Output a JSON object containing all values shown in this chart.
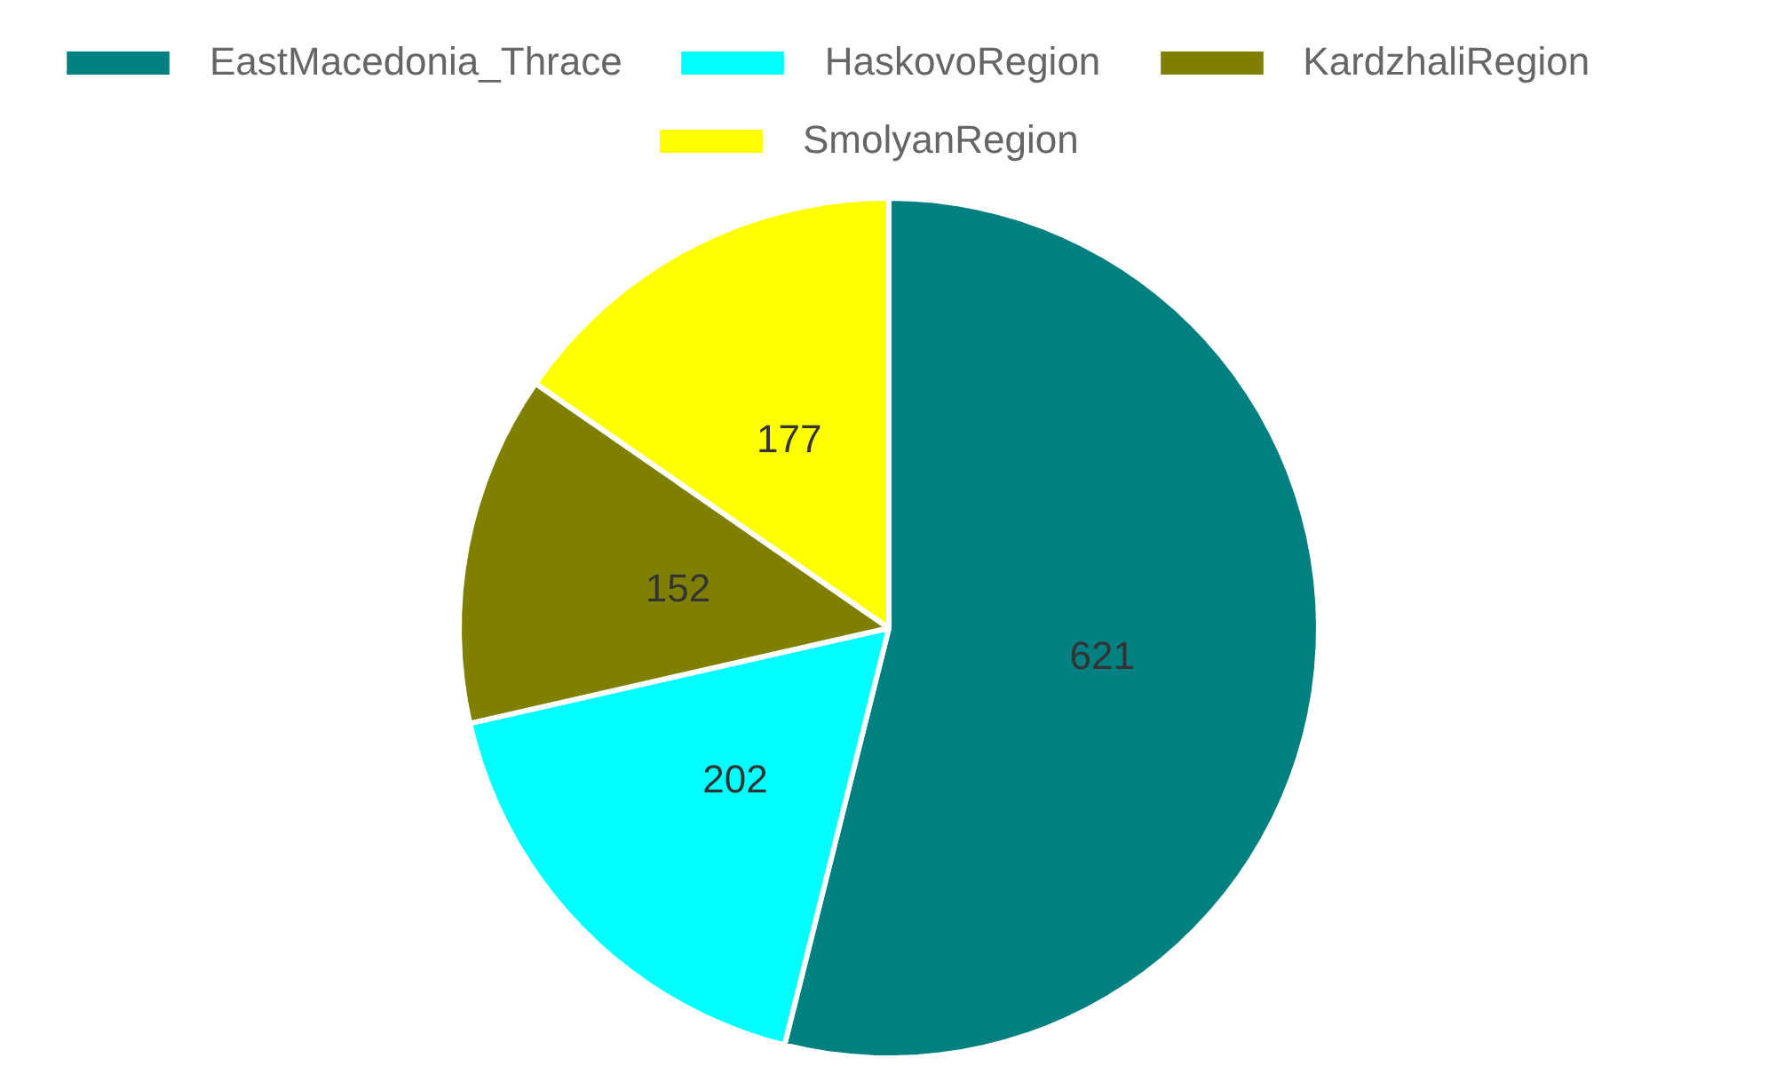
{
  "chart_data": {
    "type": "pie",
    "categories": [
      "EastMacedonia_Thrace",
      "HaskovoRegion",
      "KardzhaliRegion",
      "SmolyanRegion"
    ],
    "values": [
      621,
      202,
      152,
      177
    ],
    "colors": [
      "#008080",
      "#00ffff",
      "#808000",
      "#ffff00"
    ],
    "data_labels": true,
    "legend": "top"
  }
}
